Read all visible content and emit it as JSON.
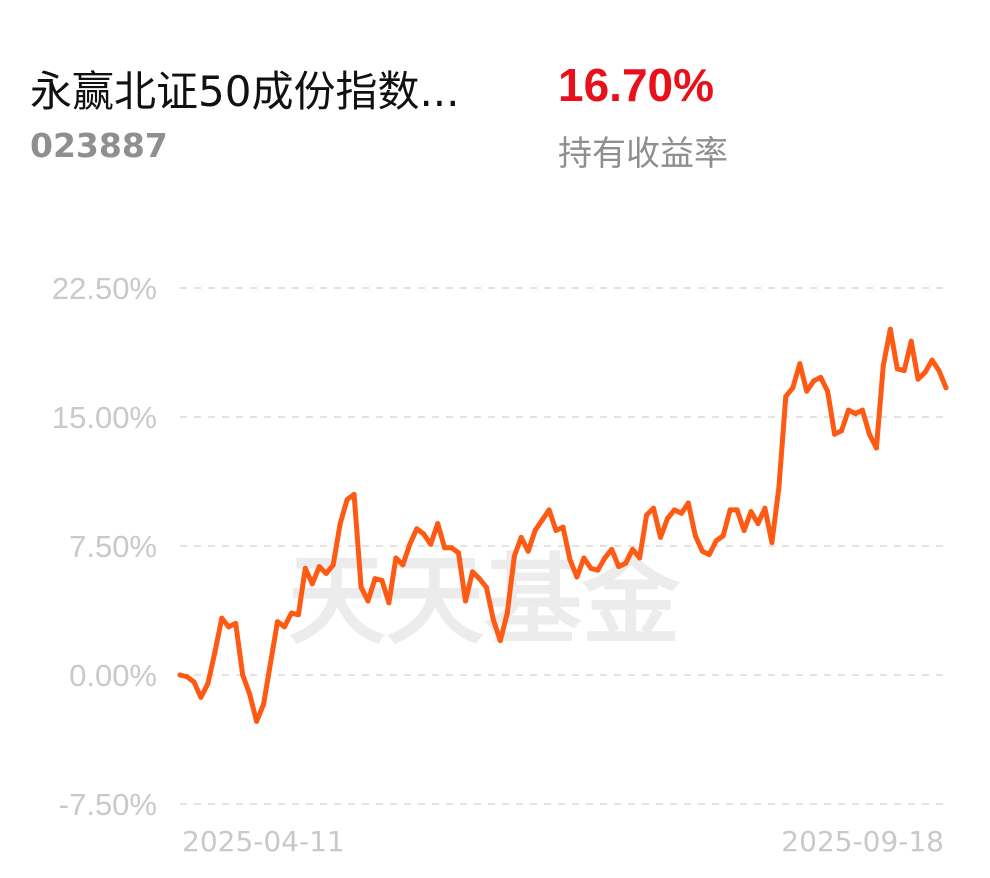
{
  "header": {
    "fund_name": "永赢北证50成份指数...",
    "fund_code": "023887",
    "return_value": "16.70%",
    "return_label": "持有收益率"
  },
  "colors": {
    "line": "#ff5a14",
    "positive": "#e8101a",
    "grid": "#e3e3e3",
    "axis_text": "#c9c9c9",
    "muted_text": "#8f8f8f"
  },
  "watermark": "天天基金",
  "chart_data": {
    "type": "line",
    "title": "",
    "xlabel": "",
    "ylabel": "",
    "y_ticks": [
      "22.50%",
      "15.00%",
      "7.50%",
      "0.00%",
      "-7.50%"
    ],
    "ylim": [
      -7.5,
      22.5
    ],
    "grid": true,
    "x_range": [
      "2025-04-11",
      "2025-09-18"
    ],
    "x_tick_labels": [
      "2025-04-11",
      "2025-09-18"
    ],
    "series": [
      {
        "values": [
          0.0,
          -0.1,
          -0.4,
          -1.3,
          -0.5,
          1.3,
          3.3,
          2.8,
          3.0,
          0.0,
          -1.1,
          -2.7,
          -1.7,
          0.7,
          3.1,
          2.8,
          3.6,
          3.5,
          6.2,
          5.3,
          6.3,
          5.9,
          6.4,
          8.8,
          10.2,
          10.5,
          5.1,
          4.3,
          5.6,
          5.5,
          4.2,
          6.8,
          6.4,
          7.6,
          8.5,
          8.2,
          7.6,
          8.8,
          7.4,
          7.4,
          7.1,
          4.3,
          6.0,
          5.6,
          5.1,
          3.2,
          2.0,
          3.6,
          6.9,
          8.0,
          7.2,
          8.4,
          9.0,
          9.6,
          8.4,
          8.6,
          6.7,
          5.7,
          6.8,
          6.2,
          6.1,
          6.8,
          7.3,
          6.3,
          6.5,
          7.3,
          6.8,
          9.3,
          9.7,
          8.0,
          9.1,
          9.6,
          9.4,
          10.0,
          8.1,
          7.2,
          7.0,
          7.8,
          8.1,
          9.6,
          9.6,
          8.4,
          9.5,
          8.8,
          9.7,
          7.7,
          10.9,
          16.2,
          16.7,
          18.1,
          16.5,
          17.1,
          17.3,
          16.5,
          14.0,
          14.2,
          15.4,
          15.2,
          15.4,
          14.0,
          13.2,
          18.0,
          20.1,
          17.8,
          17.7,
          19.4,
          17.2,
          17.6,
          18.3,
          17.7,
          16.7
        ]
      }
    ]
  }
}
